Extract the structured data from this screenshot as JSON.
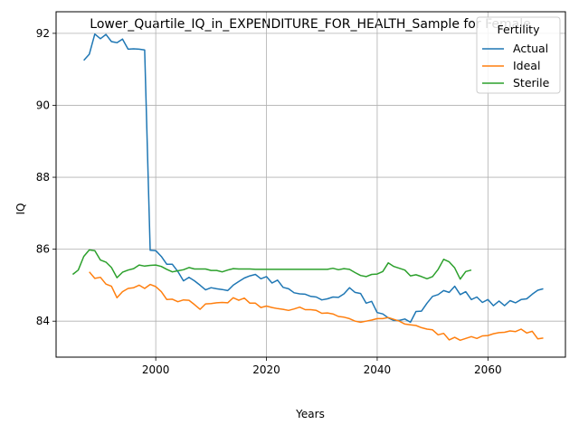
{
  "chart_data": {
    "type": "line",
    "title": "Lower_Quartile_IQ_in_EXPENDITURE_FOR_HEALTH_Sample for Female",
    "xlabel": "Years",
    "ylabel": "IQ",
    "xlim": [
      1982,
      2074
    ],
    "ylim": [
      83.0,
      92.6
    ],
    "xticks": [
      2000,
      2020,
      2040,
      2060
    ],
    "yticks": [
      84,
      86,
      88,
      90,
      92
    ],
    "grid": true,
    "legend": {
      "title": "Fertility",
      "position": "top-right"
    },
    "series": [
      {
        "name": "Actual",
        "color": "#1f77b4",
        "x": [
          1987,
          1988,
          1989,
          1990,
          1991,
          1992,
          1993,
          1994,
          1995,
          1996,
          1997,
          1998,
          1999,
          2000,
          2001,
          2002,
          2003,
          2004,
          2005,
          2006,
          2007,
          2008,
          2009,
          2010,
          2011,
          2012,
          2013,
          2014,
          2015,
          2016,
          2017,
          2018,
          2019,
          2020,
          2021,
          2022,
          2023,
          2024,
          2025,
          2026,
          2027,
          2028,
          2029,
          2030,
          2031,
          2032,
          2033,
          2034,
          2035,
          2036,
          2037,
          2038,
          2039,
          2040,
          2041,
          2042,
          2043,
          2044,
          2045,
          2046,
          2047,
          2048,
          2049,
          2050,
          2051,
          2052,
          2053,
          2054,
          2055,
          2056,
          2057,
          2058,
          2059,
          2060,
          2061,
          2062,
          2063,
          2064,
          2065,
          2066,
          2067,
          2068,
          2069,
          2070
        ],
        "y": [
          91.25,
          91.42,
          91.98,
          91.85,
          91.97,
          91.77,
          91.74,
          91.84,
          91.56,
          91.57,
          91.56,
          91.54,
          85.97,
          85.96,
          85.8,
          85.58,
          85.58,
          85.38,
          85.12,
          85.22,
          85.12,
          85.0,
          84.87,
          84.93,
          84.9,
          84.88,
          84.85,
          85.0,
          85.1,
          85.2,
          85.26,
          85.3,
          85.18,
          85.24,
          85.06,
          85.14,
          84.94,
          84.9,
          84.79,
          84.76,
          84.75,
          84.69,
          84.67,
          84.59,
          84.62,
          84.67,
          84.66,
          84.76,
          84.93,
          84.8,
          84.77,
          84.5,
          84.55,
          84.24,
          84.2,
          84.09,
          84.02,
          84.02,
          84.06,
          83.97,
          84.27,
          84.28,
          84.5,
          84.69,
          84.74,
          84.85,
          84.8,
          84.97,
          84.74,
          84.82,
          84.6,
          84.67,
          84.52,
          84.6,
          84.43,
          84.56,
          84.43,
          84.57,
          84.51,
          84.6,
          84.62,
          84.75,
          84.86,
          84.9
        ]
      },
      {
        "name": "Ideal",
        "color": "#ff7f0e",
        "x": [
          1988,
          1989,
          1990,
          1991,
          1992,
          1993,
          1994,
          1995,
          1996,
          1997,
          1998,
          1999,
          2000,
          2001,
          2002,
          2003,
          2004,
          2005,
          2006,
          2007,
          2008,
          2009,
          2010,
          2011,
          2012,
          2013,
          2014,
          2015,
          2016,
          2017,
          2018,
          2019,
          2020,
          2021,
          2022,
          2023,
          2024,
          2025,
          2026,
          2027,
          2028,
          2029,
          2030,
          2031,
          2032,
          2033,
          2034,
          2035,
          2036,
          2037,
          2038,
          2039,
          2040,
          2041,
          2042,
          2043,
          2044,
          2045,
          2046,
          2047,
          2048,
          2049,
          2050,
          2051,
          2052,
          2053,
          2054,
          2055,
          2056,
          2057,
          2058,
          2059,
          2060,
          2061,
          2062,
          2063,
          2064,
          2065,
          2066,
          2067,
          2068,
          2069,
          2070
        ],
        "y": [
          85.37,
          85.19,
          85.22,
          85.03,
          84.97,
          84.65,
          84.82,
          84.91,
          84.93,
          85.0,
          84.91,
          85.02,
          84.96,
          84.82,
          84.6,
          84.61,
          84.54,
          84.59,
          84.58,
          84.46,
          84.33,
          84.48,
          84.49,
          84.51,
          84.52,
          84.51,
          84.65,
          84.58,
          84.64,
          84.5,
          84.5,
          84.38,
          84.42,
          84.38,
          84.35,
          84.33,
          84.3,
          84.34,
          84.39,
          84.32,
          84.32,
          84.3,
          84.22,
          84.23,
          84.2,
          84.13,
          84.11,
          84.07,
          84.0,
          83.97,
          84.0,
          84.03,
          84.07,
          84.07,
          84.1,
          84.05,
          84.0,
          83.92,
          83.9,
          83.88,
          83.82,
          83.78,
          83.76,
          83.62,
          83.66,
          83.48,
          83.55,
          83.47,
          83.52,
          83.57,
          83.52,
          83.59,
          83.6,
          83.65,
          83.68,
          83.69,
          83.73,
          83.71,
          83.78,
          83.67,
          83.72,
          83.51,
          83.53
        ]
      },
      {
        "name": "Sterile",
        "color": "#2ca02c",
        "x": [
          1985,
          1986,
          1987,
          1988,
          1989,
          1990,
          1991,
          1992,
          1993,
          1994,
          1995,
          1996,
          1997,
          1998,
          1999,
          2000,
          2001,
          2002,
          2003,
          2004,
          2005,
          2006,
          2007,
          2008,
          2009,
          2010,
          2011,
          2012,
          2013,
          2014,
          2015,
          2016,
          2017,
          2018,
          2019,
          2020,
          2021,
          2022,
          2023,
          2024,
          2025,
          2026,
          2027,
          2028,
          2029,
          2030,
          2031,
          2032,
          2033,
          2034,
          2035,
          2036,
          2037,
          2038,
          2039,
          2040,
          2041,
          2042,
          2043,
          2044,
          2045,
          2046,
          2047,
          2048,
          2049,
          2050,
          2051,
          2052,
          2053,
          2054,
          2055,
          2056,
          2057
        ],
        "y": [
          85.3,
          85.42,
          85.8,
          85.98,
          85.96,
          85.7,
          85.64,
          85.49,
          85.21,
          85.36,
          85.42,
          85.46,
          85.56,
          85.53,
          85.55,
          85.56,
          85.52,
          85.44,
          85.37,
          85.4,
          85.43,
          85.49,
          85.45,
          85.45,
          85.45,
          85.41,
          85.41,
          85.37,
          85.42,
          85.46,
          85.45,
          85.45,
          85.45,
          85.44,
          85.44,
          85.44,
          85.44,
          85.44,
          85.44,
          85.44,
          85.44,
          85.44,
          85.44,
          85.44,
          85.44,
          85.44,
          85.44,
          85.47,
          85.43,
          85.46,
          85.44,
          85.35,
          85.27,
          85.24,
          85.3,
          85.31,
          85.38,
          85.62,
          85.52,
          85.47,
          85.42,
          85.26,
          85.29,
          85.24,
          85.18,
          85.24,
          85.44,
          85.72,
          85.65,
          85.48,
          85.17,
          85.38,
          85.42
        ]
      }
    ]
  }
}
